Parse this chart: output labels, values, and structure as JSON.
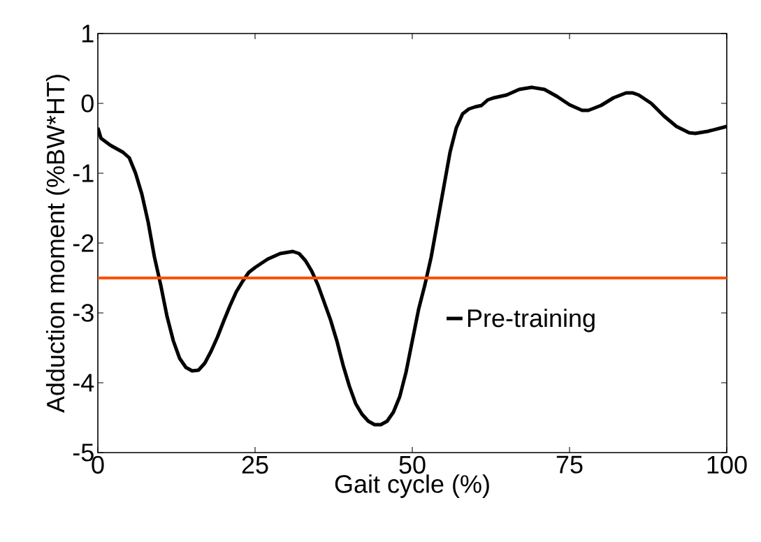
{
  "chart_data": {
    "type": "line",
    "xlabel": "Gait cycle (%)",
    "ylabel": "Adduction moment (%BW*HT)",
    "x": [
      0,
      0.5,
      2,
      4,
      5,
      6,
      7,
      8,
      9,
      10,
      11,
      12,
      13,
      14,
      15,
      16,
      17,
      18,
      19,
      20,
      21,
      22,
      23,
      24,
      25,
      27,
      29,
      31,
      32,
      33,
      34,
      35,
      36,
      37,
      38,
      39,
      40,
      41,
      42,
      43,
      44,
      45,
      46,
      47,
      48,
      49,
      50,
      51,
      52,
      53,
      54,
      55,
      56,
      57,
      58,
      59,
      60,
      61,
      62,
      63,
      65,
      67,
      69,
      71,
      73,
      75,
      77,
      78,
      80,
      82,
      84,
      85,
      86,
      88,
      90,
      92,
      94,
      95,
      97,
      100
    ],
    "series": [
      {
        "name": "Pre-training",
        "color": "#000000",
        "values": [
          -0.35,
          -0.5,
          -0.6,
          -0.7,
          -0.78,
          -1.0,
          -1.3,
          -1.7,
          -2.2,
          -2.6,
          -3.05,
          -3.4,
          -3.65,
          -3.78,
          -3.83,
          -3.82,
          -3.72,
          -3.55,
          -3.35,
          -3.12,
          -2.9,
          -2.7,
          -2.55,
          -2.42,
          -2.35,
          -2.23,
          -2.15,
          -2.12,
          -2.15,
          -2.25,
          -2.4,
          -2.6,
          -2.85,
          -3.1,
          -3.4,
          -3.75,
          -4.05,
          -4.3,
          -4.45,
          -4.55,
          -4.6,
          -4.6,
          -4.55,
          -4.42,
          -4.2,
          -3.85,
          -3.4,
          -2.95,
          -2.6,
          -2.2,
          -1.7,
          -1.2,
          -0.7,
          -0.35,
          -0.15,
          -0.08,
          -0.05,
          -0.03,
          0.05,
          0.08,
          0.12,
          0.2,
          0.23,
          0.2,
          0.1,
          -0.02,
          -0.1,
          -0.1,
          -0.03,
          0.08,
          0.15,
          0.15,
          0.12,
          0,
          -0.18,
          -0.33,
          -0.42,
          -0.43,
          -0.4,
          -0.33
        ]
      }
    ],
    "ref_lines": [
      {
        "axis": "y",
        "value": -2.5,
        "color": "#ff5000"
      }
    ],
    "xlim": [
      0,
      100
    ],
    "ylim": [
      -5,
      1
    ],
    "xticks": [
      0,
      25,
      50,
      75,
      100
    ],
    "yticks": [
      -5,
      -4,
      -3,
      -2,
      -1,
      0,
      1
    ],
    "grid": false,
    "legend": "right",
    "marker": "none",
    "line_style": "solid"
  }
}
